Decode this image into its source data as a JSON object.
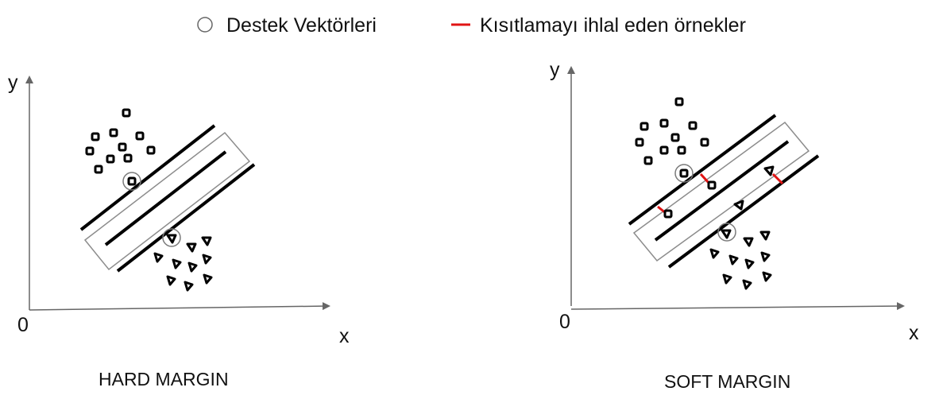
{
  "legend": {
    "support_vectors": "Destek Vektörleri",
    "violations": "Kısıtlamayı ihlal eden örnekler"
  },
  "colors": {
    "ink": "#000000",
    "margin_box": "#8c8c8c",
    "support_ring": "#7a7a7a",
    "violation": "#e01414",
    "axis": "#666666"
  },
  "panels": [
    {
      "title": "HARD MARGIN",
      "x_label": "x",
      "y_label": "y",
      "origin": "0"
    },
    {
      "title": "SOFT MARGIN",
      "x_label": "x",
      "y_label": "y",
      "origin": "0"
    }
  ]
}
